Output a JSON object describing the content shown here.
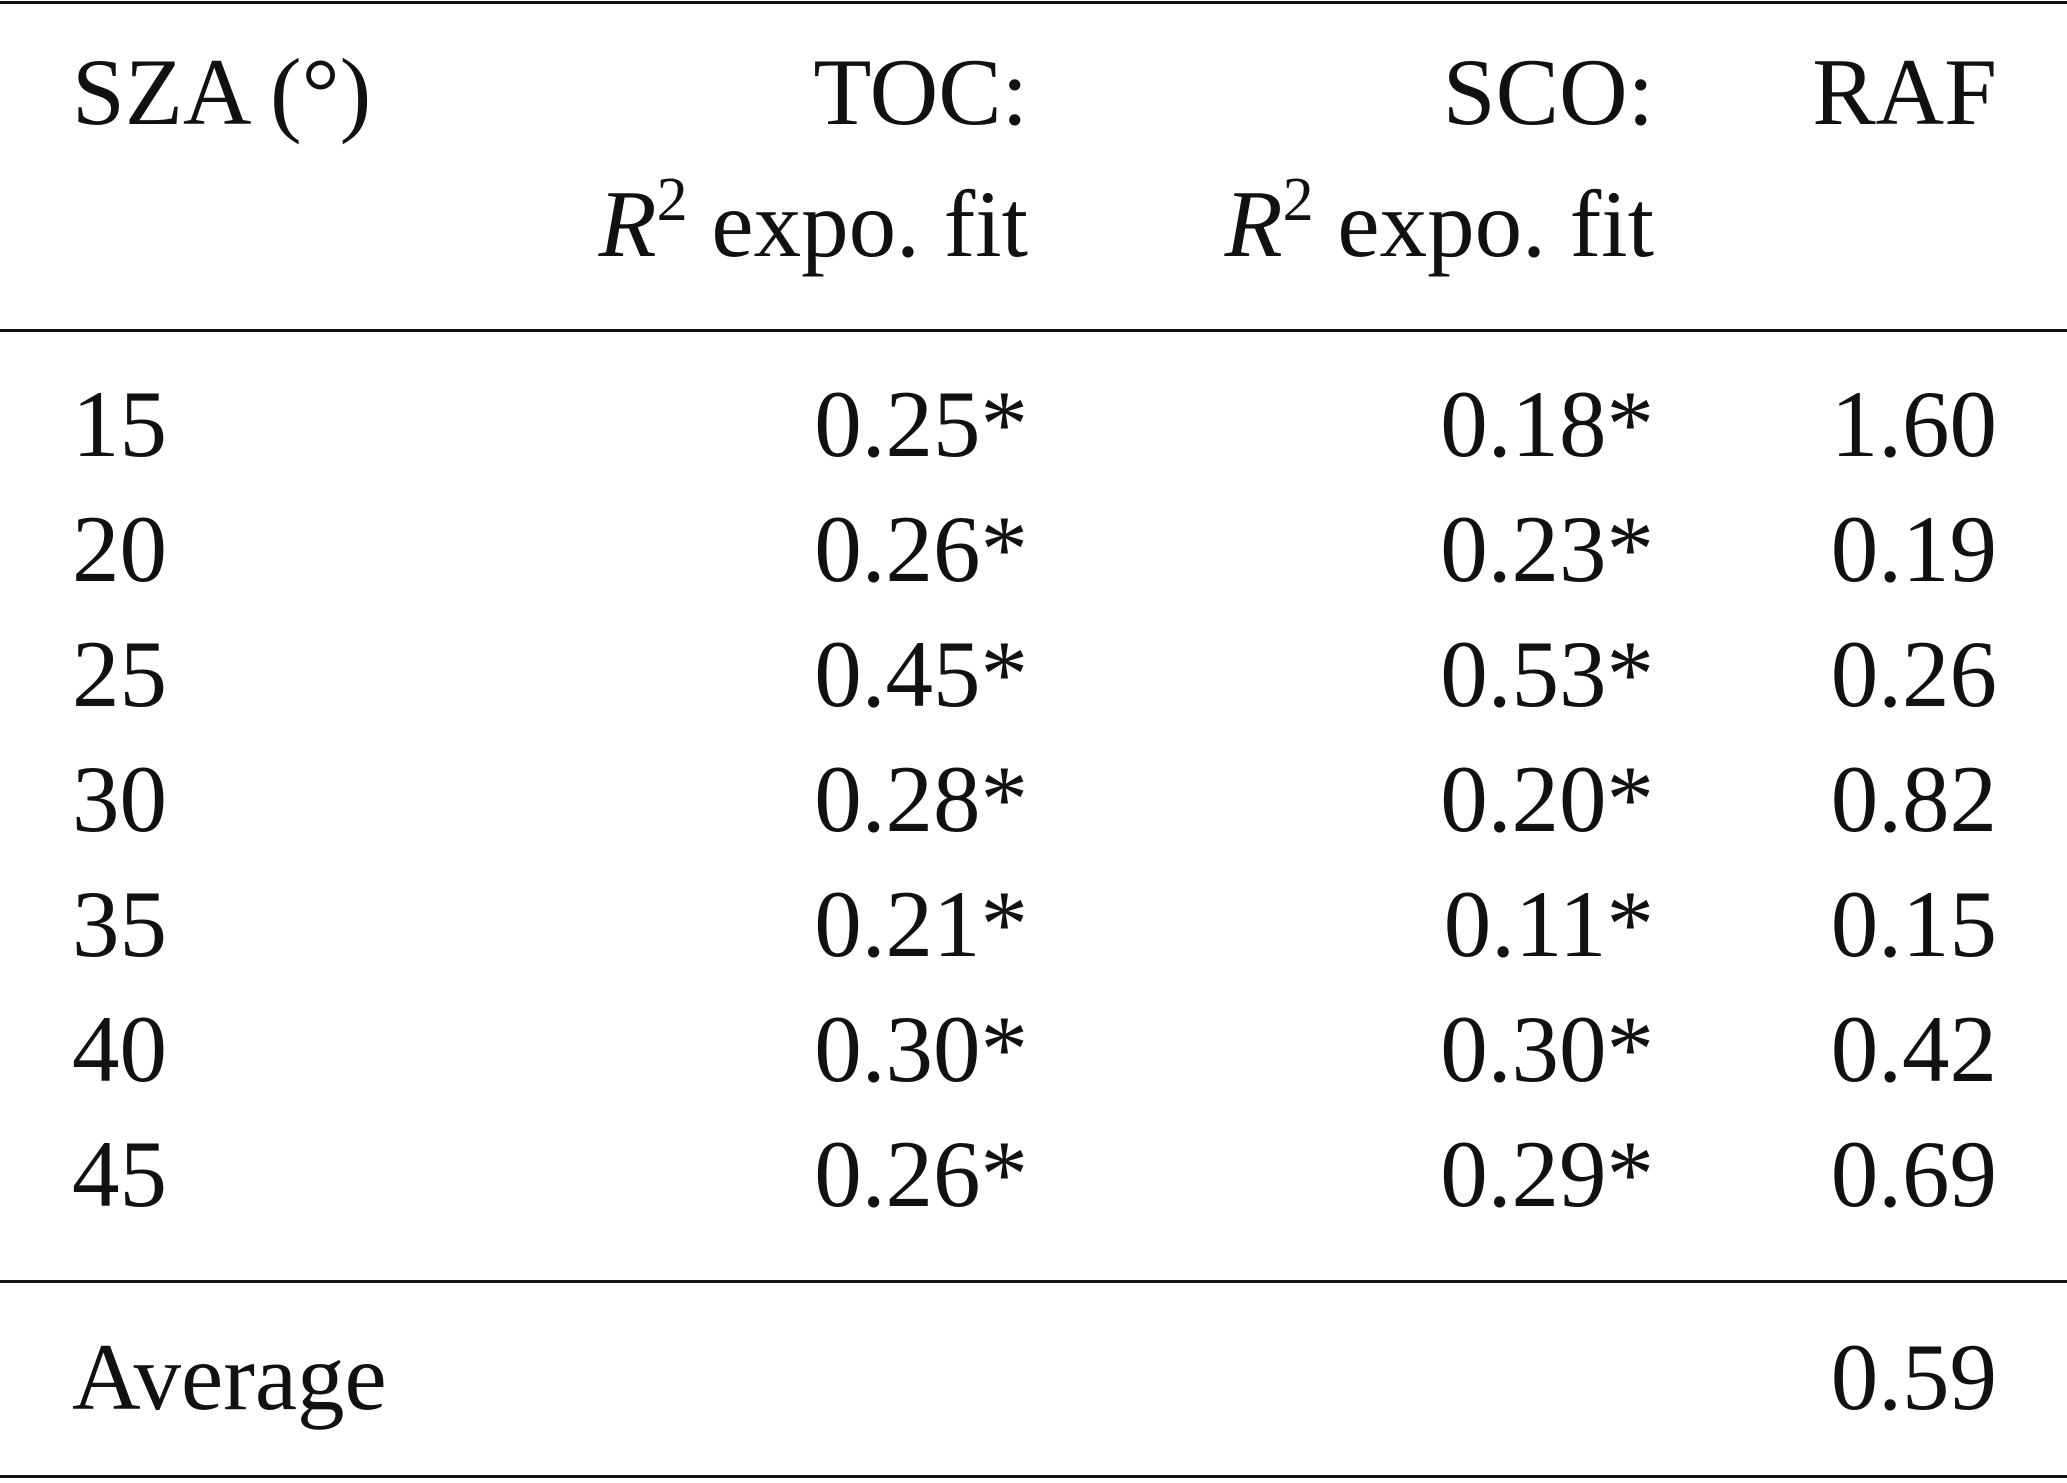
{
  "table": {
    "headers": [
      {
        "line1": "SZA (°)",
        "line2": ""
      },
      {
        "line1": "TOC:",
        "line2_var": "R",
        "line2_sup": "2",
        "line2_rest": " expo. fit"
      },
      {
        "line1": "SCO:",
        "line2_var": "R",
        "line2_sup": "2",
        "line2_rest": " expo. fit"
      },
      {
        "line1": "RAF",
        "line2": ""
      }
    ],
    "rows": [
      [
        "15",
        "0.25*",
        "0.18*",
        "1.60"
      ],
      [
        "20",
        "0.26*",
        "0.23*",
        "0.19"
      ],
      [
        "25",
        "0.45*",
        "0.53*",
        "0.26"
      ],
      [
        "30",
        "0.28*",
        "0.20*",
        "0.82"
      ],
      [
        "35",
        "0.21*",
        "0.11*",
        "0.15"
      ],
      [
        "40",
        "0.30*",
        "0.30*",
        "0.42"
      ],
      [
        "45",
        "0.26*",
        "0.29*",
        "0.69"
      ]
    ],
    "footer": {
      "label": "Average",
      "toc": "",
      "sco": "",
      "raf": "0.59"
    }
  }
}
